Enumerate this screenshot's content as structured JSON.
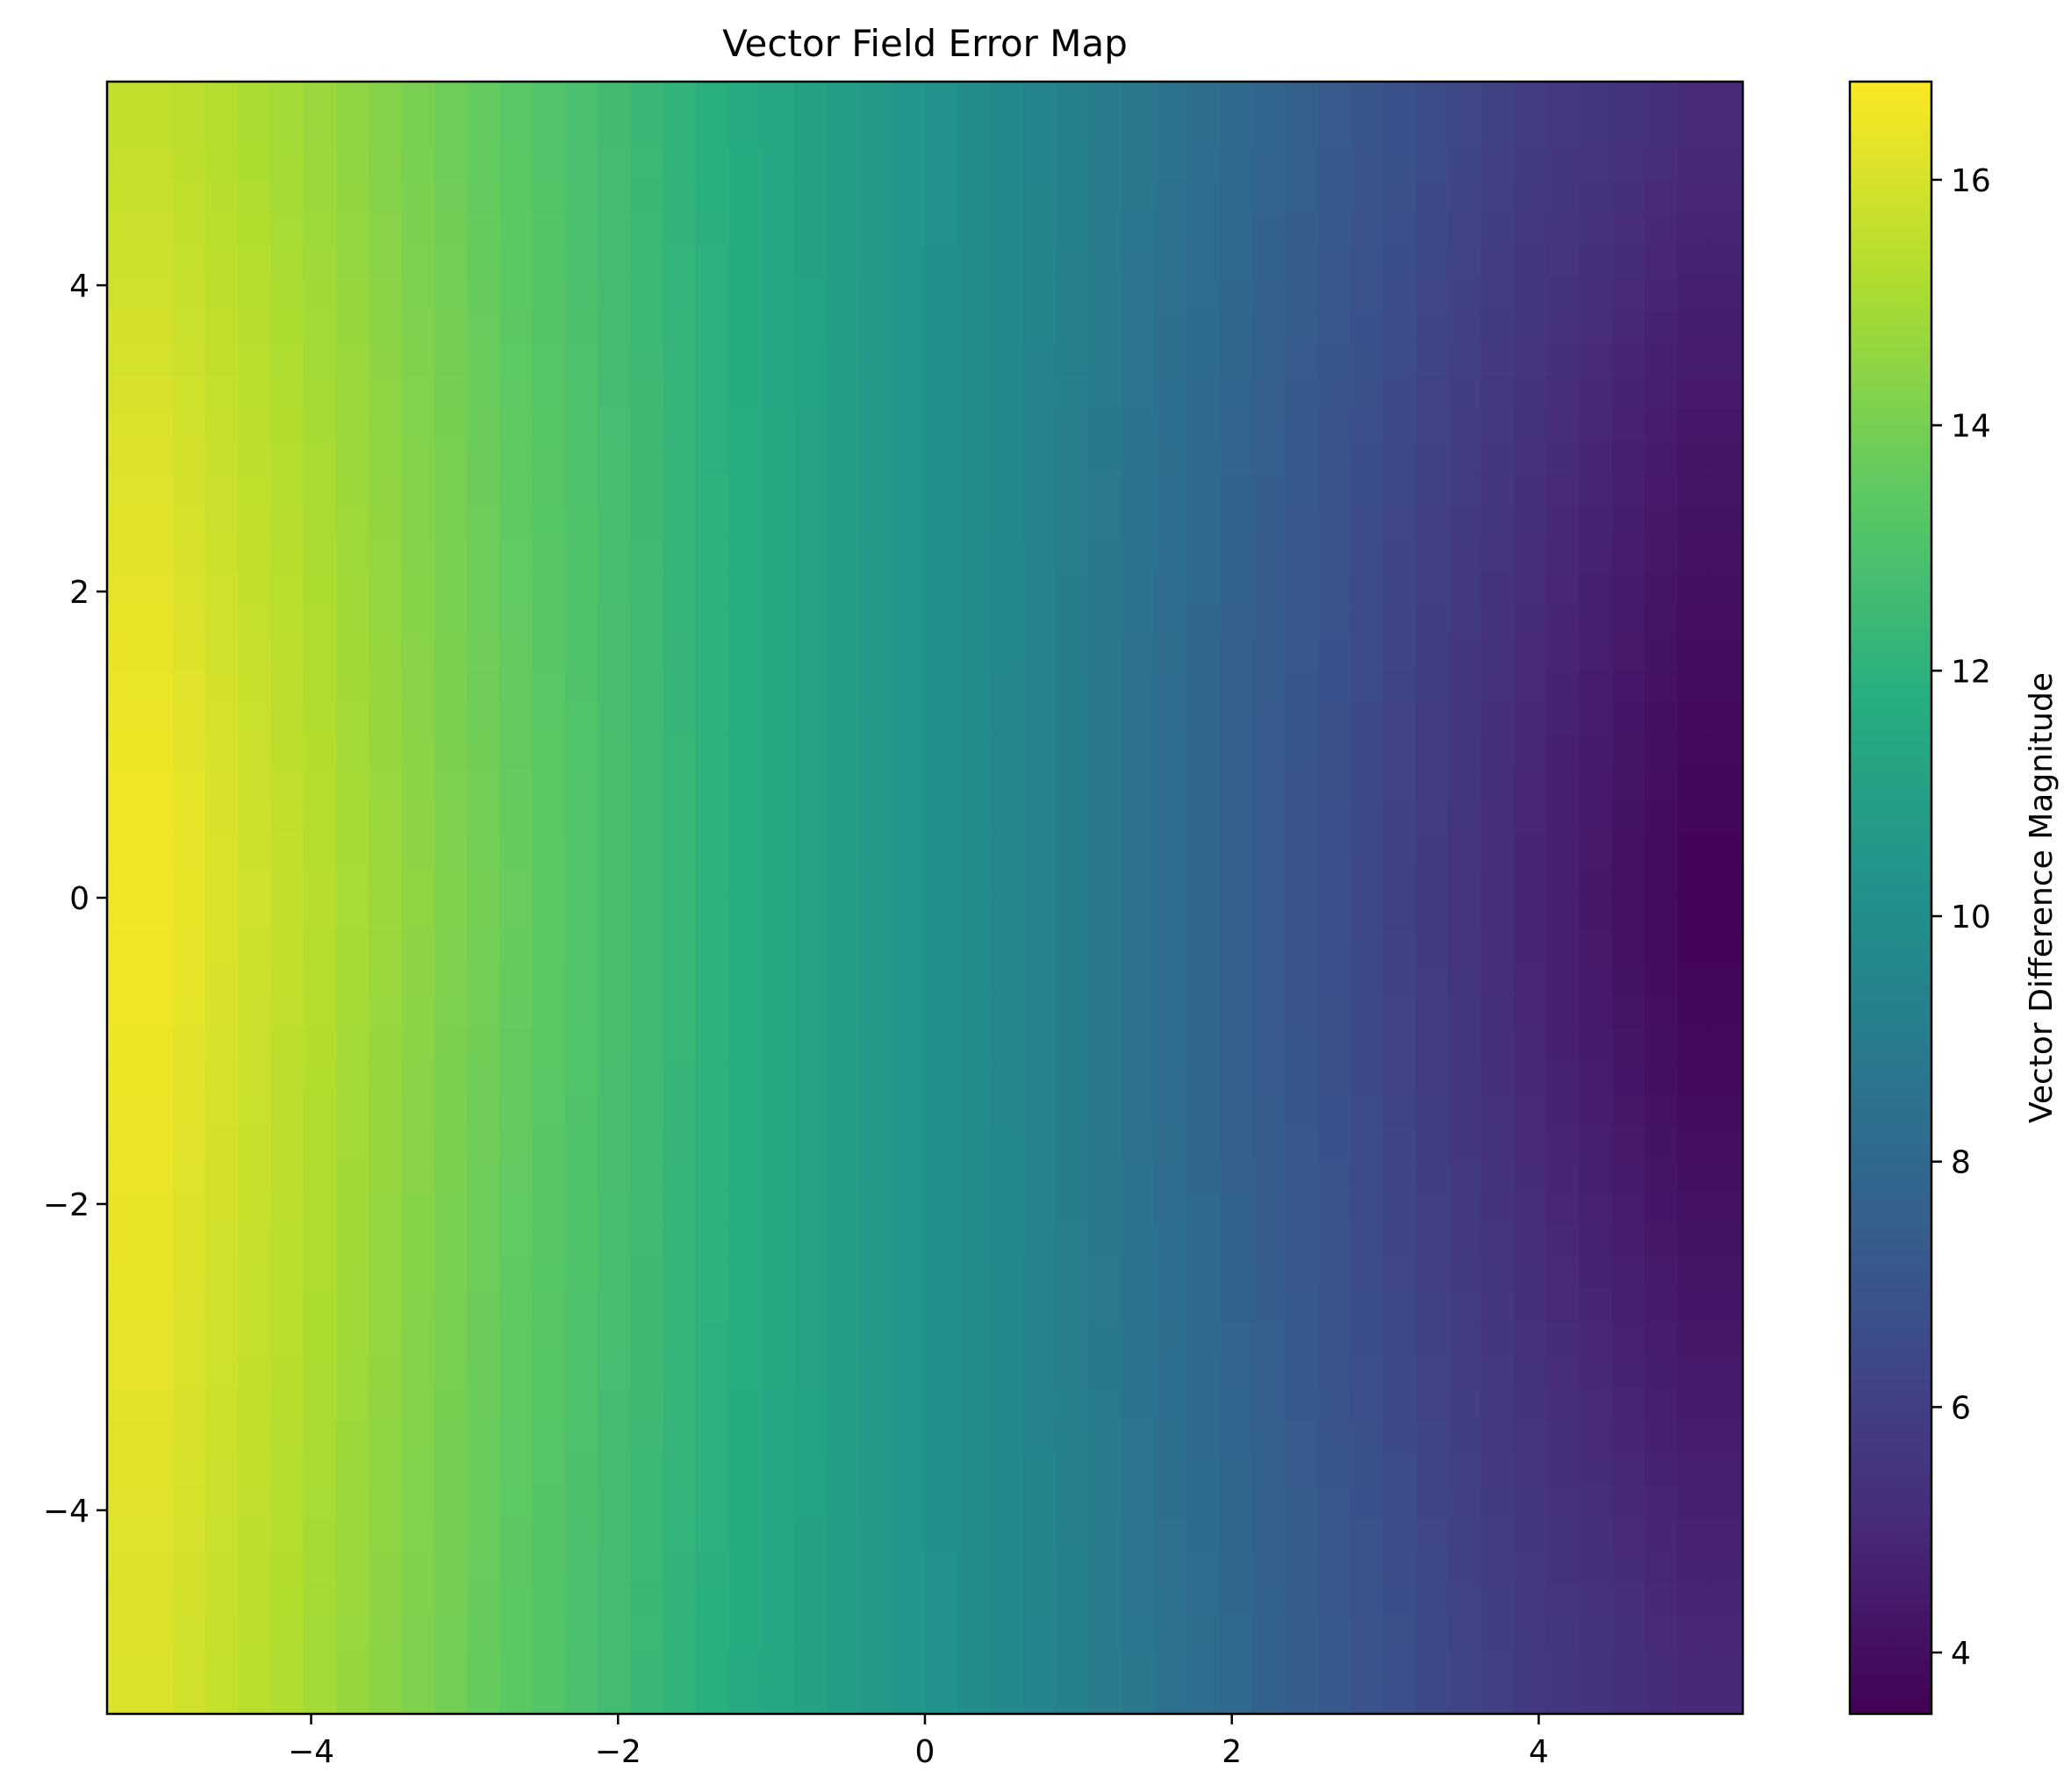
{
  "chart_data": {
    "type": "heatmap",
    "title": "Vector Field Error Map",
    "xlabel": "",
    "ylabel": "",
    "colorbar_label": "Vector Difference Magnitude",
    "colormap": "viridis",
    "grid": false,
    "legend": "none",
    "xlim": [
      -5.33,
      5.33
    ],
    "ylim": [
      -5.33,
      5.33
    ],
    "x_ticks": [
      -4,
      -2,
      0,
      2,
      4
    ],
    "x_tick_labels": [
      "−4",
      "−2",
      "0",
      "2",
      "4"
    ],
    "y_ticks": [
      -4,
      -2,
      0,
      2,
      4
    ],
    "y_tick_labels": [
      "−4",
      "−2",
      "0",
      "2",
      "4"
    ],
    "colorbar_range": [
      3.5,
      16.8
    ],
    "colorbar_ticks": [
      4,
      6,
      8,
      10,
      12,
      14,
      16
    ],
    "colorbar_tick_labels": [
      "4",
      "6",
      "8",
      "10",
      "12",
      "14",
      "16"
    ],
    "grid_resolution": 50,
    "cell_size": 0.2105,
    "x_centers": [
      -5.1053,
      -4.5789,
      -4.0526,
      -3.5263,
      -3.0,
      -2.4737,
      -1.9474,
      -1.4211,
      -0.8947,
      -0.3684,
      0.1579,
      0.6842,
      1.2105,
      1.7368,
      2.2632,
      2.7895,
      3.3158,
      3.8421,
      4.3684,
      4.8947,
      5.1053
    ],
    "magnitude_model": {
      "description": "field depends mostly on x; values sampled on 50x50 grid",
      "row_samples_y": [
        5.0,
        3.0,
        1.0,
        0.0,
        -1.0,
        -3.0,
        -5.0
      ],
      "col_samples_x": [
        -5.0,
        -4.0,
        -3.0,
        -2.0,
        -1.0,
        0.0,
        1.0,
        2.0,
        3.0,
        4.0,
        5.0
      ],
      "values": [
        [
          15.6,
          14.8,
          13.7,
          12.6,
          11.4,
          10.3,
          9.2,
          8.1,
          6.9,
          5.8,
          5.1
        ],
        [
          16.1,
          15.1,
          13.9,
          12.7,
          11.5,
          10.3,
          9.1,
          7.8,
          6.5,
          5.3,
          4.3
        ],
        [
          16.5,
          15.3,
          14.0,
          12.8,
          11.5,
          10.3,
          9.0,
          7.6,
          6.3,
          4.9,
          3.8
        ],
        [
          16.6,
          15.4,
          14.1,
          12.8,
          11.5,
          10.3,
          9.0,
          7.6,
          6.2,
          4.8,
          3.6
        ],
        [
          16.5,
          15.3,
          14.0,
          12.8,
          11.5,
          10.3,
          9.0,
          7.6,
          6.3,
          4.9,
          3.8
        ],
        [
          16.3,
          15.2,
          13.9,
          12.7,
          11.5,
          10.3,
          9.1,
          7.8,
          6.5,
          5.3,
          4.4
        ],
        [
          16.1,
          15.0,
          13.8,
          12.6,
          11.4,
          10.3,
          9.2,
          8.0,
          6.8,
          5.7,
          5.0
        ]
      ]
    }
  }
}
